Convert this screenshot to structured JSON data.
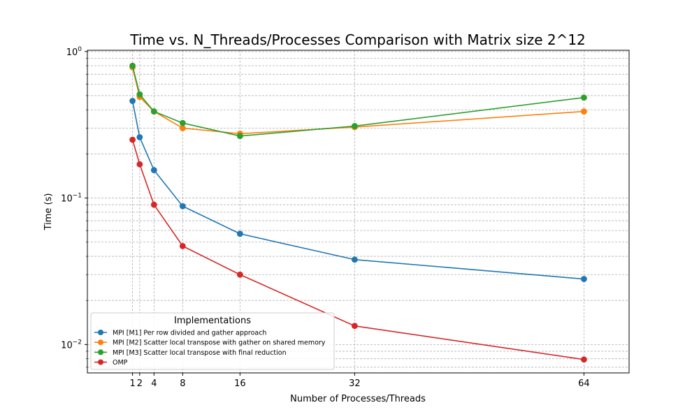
{
  "chart_data": {
    "type": "line",
    "title": "Time vs. N_Threads/Processes Comparison with Matrix size 2^12",
    "xlabel": "Number of Processes/Threads",
    "ylabel": "Time (s)",
    "x": [
      1,
      2,
      4,
      8,
      16,
      32,
      64
    ],
    "x_ticks": [
      1,
      2,
      4,
      8,
      16,
      32,
      64
    ],
    "xlim": [
      -5.3,
      70.3
    ],
    "y_scale": "log",
    "ylim": [
      0.0064,
      1.02
    ],
    "y_ticks": [
      {
        "value": 0.01,
        "base": "10",
        "exp": "−2"
      },
      {
        "value": 0.1,
        "base": "10",
        "exp": "−1"
      },
      {
        "value": 1,
        "base": "10",
        "exp": "0"
      }
    ],
    "grid": true,
    "legend": {
      "title": "Implementations",
      "placement": "lower-left"
    },
    "series": [
      {
        "name": "MPI [M1] Per row divided and gather approach",
        "color": "#1f77b4",
        "values": [
          0.46,
          0.26,
          0.155,
          0.088,
          0.057,
          0.038,
          0.028
        ]
      },
      {
        "name": "MPI [M2] Scatter local transpose with gather on shared memory",
        "color": "#ff7f0e",
        "values": [
          0.78,
          0.49,
          0.39,
          0.3,
          0.275,
          0.305,
          0.39
        ]
      },
      {
        "name": "MPI [M3] Scatter local transpose with final reduction",
        "color": "#2ca02c",
        "values": [
          0.8,
          0.51,
          0.39,
          0.325,
          0.265,
          0.31,
          0.485
        ]
      },
      {
        "name": "OMP",
        "color": "#d62728",
        "values": [
          0.25,
          0.17,
          0.09,
          0.047,
          0.03,
          0.0134,
          0.0079
        ]
      }
    ]
  }
}
